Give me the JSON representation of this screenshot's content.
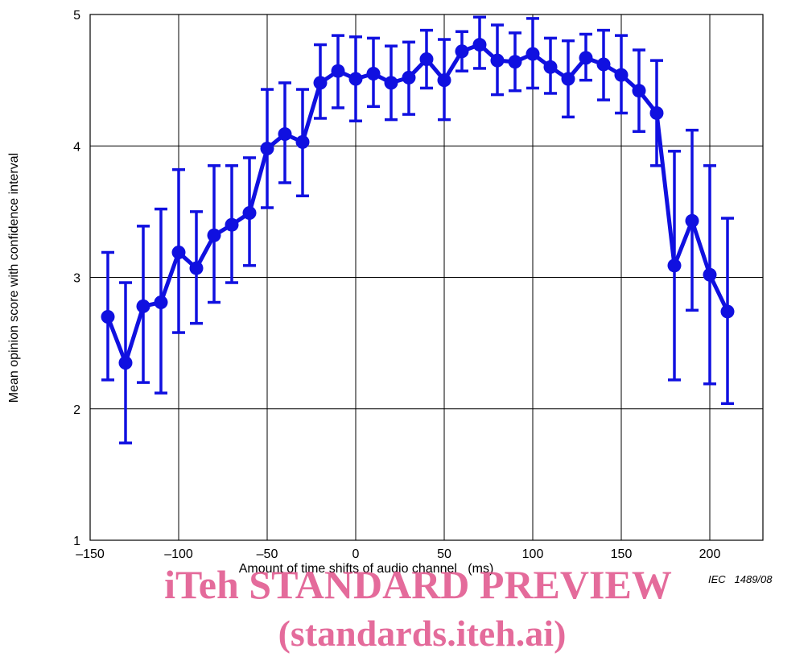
{
  "chart_data": {
    "type": "line",
    "xlabel": "Amount of time shifts of audio channel   (ms)",
    "ylabel": "Mean opinion score with confidence interval",
    "xlim": [
      -150,
      230
    ],
    "ylim": [
      1,
      5
    ],
    "xticks": [
      -150,
      -100,
      -50,
      0,
      50,
      100,
      150,
      200
    ],
    "xtick_labels": [
      "–150",
      "–100",
      "–50",
      "0",
      "50",
      "100",
      "150",
      "200"
    ],
    "yticks": [
      1,
      2,
      3,
      4,
      5
    ],
    "ytick_labels": [
      "1",
      "2",
      "3",
      "4",
      "5"
    ],
    "grid": true,
    "color": "#1010e0",
    "series": [
      {
        "x": [
          -140,
          -130,
          -120,
          -110,
          -100,
          -90,
          -80,
          -70,
          -60,
          -50,
          -40,
          -30,
          -20,
          -10,
          0,
          10,
          20,
          30,
          40,
          50,
          60,
          70,
          80,
          90,
          100,
          110,
          120,
          130,
          140,
          150,
          160,
          170,
          180,
          190,
          200,
          210
        ],
        "y": [
          2.7,
          2.35,
          2.78,
          2.81,
          3.19,
          3.07,
          3.32,
          3.4,
          3.49,
          3.98,
          4.09,
          4.03,
          4.48,
          4.57,
          4.51,
          4.55,
          4.48,
          4.52,
          4.66,
          4.5,
          4.72,
          4.77,
          4.65,
          4.64,
          4.7,
          4.6,
          4.51,
          4.67,
          4.62,
          4.54,
          4.42,
          4.25,
          3.09,
          3.43,
          3.02,
          2.74
        ],
        "ci_low": [
          2.22,
          1.74,
          2.2,
          2.12,
          2.58,
          2.65,
          2.81,
          2.96,
          3.09,
          3.53,
          3.72,
          3.62,
          4.21,
          4.29,
          4.19,
          4.3,
          4.2,
          4.24,
          4.44,
          4.2,
          4.57,
          4.59,
          4.39,
          4.42,
          4.44,
          4.4,
          4.22,
          4.5,
          4.35,
          4.25,
          4.11,
          3.85,
          2.22,
          2.75,
          2.19,
          2.04
        ],
        "ci_high": [
          3.19,
          2.96,
          3.39,
          3.52,
          3.82,
          3.5,
          3.85,
          3.85,
          3.91,
          4.43,
          4.48,
          4.43,
          4.77,
          4.84,
          4.83,
          4.82,
          4.76,
          4.79,
          4.88,
          4.81,
          4.87,
          4.98,
          4.92,
          4.86,
          4.97,
          4.82,
          4.8,
          4.85,
          4.88,
          4.84,
          4.73,
          4.65,
          3.96,
          4.12,
          3.85,
          3.45
        ]
      }
    ]
  },
  "reference_label": "IEC   1489/08",
  "watermark": {
    "line1": "iTeh STANDARD PREVIEW",
    "line2": "(standards.iteh.ai)"
  }
}
